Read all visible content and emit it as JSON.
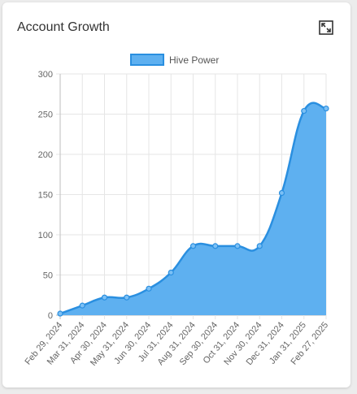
{
  "card": {
    "title": "Account Growth",
    "expand_icon": "expand-icon"
  },
  "colors": {
    "fill": "#5eb0f0",
    "line": "#2a8fe0",
    "point_fill": "#7cc0f5",
    "grid": "#e6e6e6",
    "axis": "#bdbdbd"
  },
  "chart_data": {
    "type": "area",
    "x": [
      "Feb 29, 2024",
      "Mar 31, 2024",
      "Apr 30, 2024",
      "May 31, 2024",
      "Jun 30, 2024",
      "Jul 31, 2024",
      "Aug 31, 2024",
      "Sep 30, 2024",
      "Oct 31, 2024",
      "Nov 30, 2024",
      "Dec 31, 2024",
      "Jan 31, 2025",
      "Feb 27, 2025"
    ],
    "series": [
      {
        "name": "Hive Power",
        "values": [
          2,
          12,
          22,
          22,
          33,
          53,
          86,
          86,
          86,
          86,
          152,
          254,
          257
        ]
      }
    ],
    "ylim": [
      0,
      300
    ],
    "yticks": [
      0,
      50,
      100,
      150,
      200,
      250,
      300
    ],
    "grid": true,
    "legend": "top-center"
  }
}
